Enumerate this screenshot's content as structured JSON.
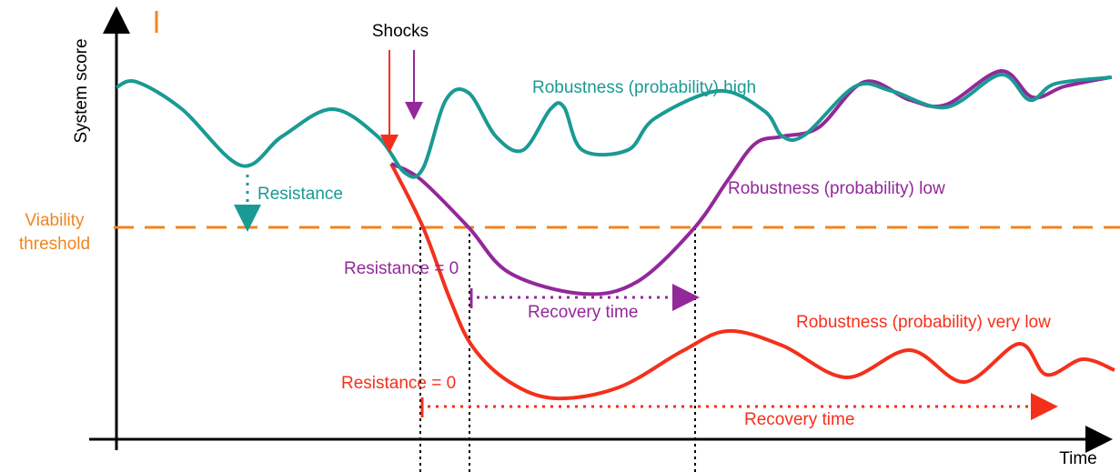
{
  "axes": {
    "y_label": "System score",
    "x_label": "Time"
  },
  "shocks_label": "Shocks",
  "threshold_label": [
    "Viability",
    "threshold"
  ],
  "curves": {
    "high": {
      "label": "Robustness (probability) high",
      "resistance": "Resistance"
    },
    "low": {
      "label": "Robustness (probability) low",
      "resistance": "Resistance = 0",
      "recovery": "Recovery time"
    },
    "very_low": {
      "label": "Robustness (probability) very low",
      "resistance": "Resistance = 0",
      "recovery": "Recovery time"
    }
  }
}
